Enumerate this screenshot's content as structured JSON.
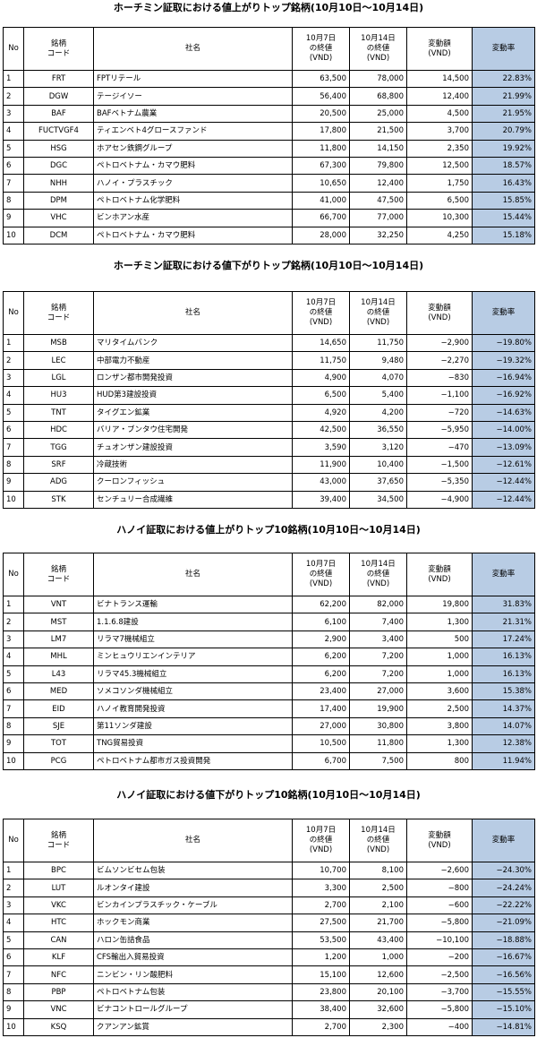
{
  "headers": {
    "no": "No",
    "code": "銘柄\nコード",
    "name": "社名",
    "price_start": "10月7日\nの終値\n(VND)",
    "price_end": "10月14日\nの終値\n(VND)",
    "change": "変動額\n(VND)",
    "rate": "変動率"
  },
  "tables": [
    {
      "title": "ホーチミン証取における値上がりトップ銘柄(10月10日～10月14日)",
      "rows": [
        {
          "no": "1",
          "code": "FRT",
          "name": "FPTリテール",
          "p1": "63,500",
          "p2": "78,000",
          "chg": "14,500",
          "rate": "22.83%"
        },
        {
          "no": "2",
          "code": "DGW",
          "name": "テージイソー",
          "p1": "56,400",
          "p2": "68,800",
          "chg": "12,400",
          "rate": "21.99%"
        },
        {
          "no": "3",
          "code": "BAF",
          "name": "BAFベトナム農業",
          "p1": "20,500",
          "p2": "25,000",
          "chg": "4,500",
          "rate": "21.95%"
        },
        {
          "no": "4",
          "code": "FUCTVGF4",
          "name": "ティエンベト4グロースファンド",
          "p1": "17,800",
          "p2": "21,500",
          "chg": "3,700",
          "rate": "20.79%"
        },
        {
          "no": "5",
          "code": "HSG",
          "name": "ホアセン鉄鋼グループ",
          "p1": "11,800",
          "p2": "14,150",
          "chg": "2,350",
          "rate": "19.92%"
        },
        {
          "no": "6",
          "code": "DGC",
          "name": "ペトロベトナム・カマウ肥料",
          "p1": "67,300",
          "p2": "79,800",
          "chg": "12,500",
          "rate": "18.57%"
        },
        {
          "no": "7",
          "code": "NHH",
          "name": "ハノイ・プラスチック",
          "p1": "10,650",
          "p2": "12,400",
          "chg": "1,750",
          "rate": "16.43%"
        },
        {
          "no": "8",
          "code": "DPM",
          "name": "ペトロベトナム化学肥料",
          "p1": "41,000",
          "p2": "47,500",
          "chg": "6,500",
          "rate": "15.85%"
        },
        {
          "no": "9",
          "code": "VHC",
          "name": "ビンホアン水産",
          "p1": "66,700",
          "p2": "77,000",
          "chg": "10,300",
          "rate": "15.44%"
        },
        {
          "no": "10",
          "code": "DCM",
          "name": "ペトロベトナム・カマウ肥料",
          "p1": "28,000",
          "p2": "32,250",
          "chg": "4,250",
          "rate": "15.18%"
        }
      ]
    },
    {
      "title": "ホーチミン証取における値下がりトップ銘柄(10月10日～10月14日)",
      "rows": [
        {
          "no": "1",
          "code": "MSB",
          "name": "マリタイムバンク",
          "p1": "14,650",
          "p2": "11,750",
          "chg": "−2,900",
          "rate": "−19.80%"
        },
        {
          "no": "2",
          "code": "LEC",
          "name": "中部電力不動産",
          "p1": "11,750",
          "p2": "9,480",
          "chg": "−2,270",
          "rate": "−19.32%"
        },
        {
          "no": "3",
          "code": "LGL",
          "name": "ロンザン都市開発投資",
          "p1": "4,900",
          "p2": "4,070",
          "chg": "−830",
          "rate": "−16.94%"
        },
        {
          "no": "4",
          "code": "HU3",
          "name": "HUD第3建設投資",
          "p1": "6,500",
          "p2": "5,400",
          "chg": "−1,100",
          "rate": "−16.92%"
        },
        {
          "no": "5",
          "code": "TNT",
          "name": "タイグエン鉱業",
          "p1": "4,920",
          "p2": "4,200",
          "chg": "−720",
          "rate": "−14.63%"
        },
        {
          "no": "6",
          "code": "HDC",
          "name": "バリア・ブンタウ住宅開発",
          "p1": "42,500",
          "p2": "36,550",
          "chg": "−5,950",
          "rate": "−14.00%"
        },
        {
          "no": "7",
          "code": "TGG",
          "name": "チュオンザン建設投資",
          "p1": "3,590",
          "p2": "3,120",
          "chg": "−470",
          "rate": "−13.09%"
        },
        {
          "no": "8",
          "code": "SRF",
          "name": "冷蔵技術",
          "p1": "11,900",
          "p2": "10,400",
          "chg": "−1,500",
          "rate": "−12.61%"
        },
        {
          "no": "9",
          "code": "ADG",
          "name": "クーロンフィッシュ",
          "p1": "43,000",
          "p2": "37,650",
          "chg": "−5,350",
          "rate": "−12.44%"
        },
        {
          "no": "10",
          "code": "STK",
          "name": "センチュリー合成繊維",
          "p1": "39,400",
          "p2": "34,500",
          "chg": "−4,900",
          "rate": "−12.44%"
        }
      ]
    },
    {
      "title": "ハノイ証取における値上がりトップ10銘柄(10月10日～10月14日)",
      "rows": [
        {
          "no": "1",
          "code": "VNT",
          "name": "ビナトランス運輸",
          "p1": "62,200",
          "p2": "82,000",
          "chg": "19,800",
          "rate": "31.83%"
        },
        {
          "no": "2",
          "code": "MST",
          "name": "1.1.6.8建設",
          "p1": "6,100",
          "p2": "7,400",
          "chg": "1,300",
          "rate": "21.31%"
        },
        {
          "no": "3",
          "code": "LM7",
          "name": "リラマ7機械組立",
          "p1": "2,900",
          "p2": "3,400",
          "chg": "500",
          "rate": "17.24%"
        },
        {
          "no": "4",
          "code": "MHL",
          "name": "ミンヒュウリエンインテリア",
          "p1": "6,200",
          "p2": "7,200",
          "chg": "1,000",
          "rate": "16.13%"
        },
        {
          "no": "5",
          "code": "L43",
          "name": "リラマ45.3機械組立",
          "p1": "6,200",
          "p2": "7,200",
          "chg": "1,000",
          "rate": "16.13%"
        },
        {
          "no": "6",
          "code": "MED",
          "name": "ソメコソンダ機械組立",
          "p1": "23,400",
          "p2": "27,000",
          "chg": "3,600",
          "rate": "15.38%"
        },
        {
          "no": "7",
          "code": "EID",
          "name": "ハノイ教育開発投資",
          "p1": "17,400",
          "p2": "19,900",
          "chg": "2,500",
          "rate": "14.37%"
        },
        {
          "no": "8",
          "code": "SJE",
          "name": "第11ソンダ建設",
          "p1": "27,000",
          "p2": "30,800",
          "chg": "3,800",
          "rate": "14.07%"
        },
        {
          "no": "9",
          "code": "TOT",
          "name": "TNG貿易投資",
          "p1": "10,500",
          "p2": "11,800",
          "chg": "1,300",
          "rate": "12.38%"
        },
        {
          "no": "10",
          "code": "PCG",
          "name": "ペトロベトナム都市ガス投資開発",
          "p1": "6,700",
          "p2": "7,500",
          "chg": "800",
          "rate": "11.94%"
        }
      ]
    },
    {
      "title": "ハノイ証取における値下がりトップ10銘柄(10月10日～10月14日)",
      "rows": [
        {
          "no": "1",
          "code": "BPC",
          "name": "ビムソンビセム包装",
          "p1": "10,700",
          "p2": "8,100",
          "chg": "−2,600",
          "rate": "−24.30%"
        },
        {
          "no": "2",
          "code": "LUT",
          "name": "ルオンタイ建設",
          "p1": "3,300",
          "p2": "2,500",
          "chg": "−800",
          "rate": "−24.24%"
        },
        {
          "no": "3",
          "code": "VKC",
          "name": "ビンカインプラスチック・ケーブル",
          "p1": "2,700",
          "p2": "2,100",
          "chg": "−600",
          "rate": "−22.22%"
        },
        {
          "no": "4",
          "code": "HTC",
          "name": "ホックモン商業",
          "p1": "27,500",
          "p2": "21,700",
          "chg": "−5,800",
          "rate": "−21.09%"
        },
        {
          "no": "5",
          "code": "CAN",
          "name": "ハロン缶詰食品",
          "p1": "53,500",
          "p2": "43,400",
          "chg": "−10,100",
          "rate": "−18.88%"
        },
        {
          "no": "6",
          "code": "KLF",
          "name": "CFS輸出入貿易投資",
          "p1": "1,200",
          "p2": "1,000",
          "chg": "−200",
          "rate": "−16.67%"
        },
        {
          "no": "7",
          "code": "NFC",
          "name": "ニンビン・リン酸肥料",
          "p1": "15,100",
          "p2": "12,600",
          "chg": "−2,500",
          "rate": "−16.56%"
        },
        {
          "no": "8",
          "code": "PBP",
          "name": "ペトロベトナム包装",
          "p1": "23,800",
          "p2": "20,100",
          "chg": "−3,700",
          "rate": "−15.55%"
        },
        {
          "no": "9",
          "code": "VNC",
          "name": "ビナコントロールグループ",
          "p1": "38,400",
          "p2": "32,600",
          "chg": "−5,800",
          "rate": "−15.10%"
        },
        {
          "no": "10",
          "code": "KSQ",
          "name": "クアンアン鉱賞",
          "p1": "2,700",
          "p2": "2,300",
          "chg": "−400",
          "rate": "−14.81%"
        }
      ]
    }
  ]
}
